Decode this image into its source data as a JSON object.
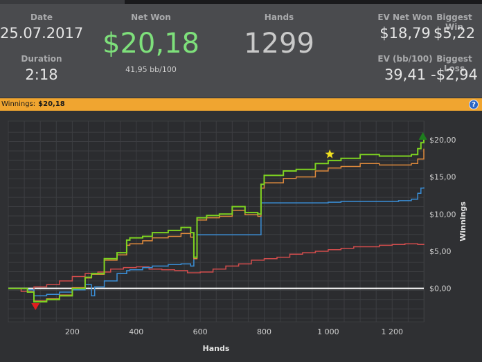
{
  "summary": {
    "date_label": "Date",
    "date_value": "25.07.2017",
    "duration_label": "Duration",
    "duration_value": "2:18",
    "net_won_label": "Net Won",
    "net_won_value": "$20,18",
    "net_won_bb": "41,95 bb/100",
    "hands_label": "Hands",
    "hands_value": "1299",
    "ev_net_won_label": "EV Net Won",
    "ev_net_won_value": "$18,79",
    "biggest_win_label": "Biggest Win",
    "biggest_win_value": "$5,22",
    "ev_bb_label": "EV (bb/100)",
    "ev_bb_value": "39,41",
    "biggest_loss_label": "Biggest Loss",
    "biggest_loss_value": "-$2,94"
  },
  "winnings_bar": {
    "label": "Winnings:",
    "value": "$20,18",
    "help_icon": "?"
  },
  "colors": {
    "net_won_green": "#7ee07b",
    "winbar_orange": "#f0a530",
    "series_green": "#7ed321",
    "series_orange": "#e08a3c",
    "series_blue": "#3a8fd8",
    "series_red": "#d24c4c"
  },
  "chart_data": {
    "type": "line",
    "title": "",
    "xlabel": "Hands",
    "ylabel": "Winnings",
    "xlim": [
      0,
      1299
    ],
    "ylim": [
      -4.5,
      22.5
    ],
    "x_ticks": [
      200,
      400,
      600,
      800,
      1000,
      1200
    ],
    "x_tick_labels": [
      "200",
      "400",
      "600",
      "800",
      "1 000",
      "1 200"
    ],
    "y_ticks": [
      0,
      5,
      10,
      15,
      20
    ],
    "y_tick_labels": [
      "$0,00",
      "$5,00",
      "$10,00",
      "$15,00",
      "$20,00"
    ],
    "grid": true,
    "y_axis_side": "right",
    "series": [
      {
        "color": "#7ed321",
        "x": [
          0,
          60,
          80,
          120,
          160,
          200,
          240,
          260,
          300,
          340,
          370,
          380,
          420,
          450,
          500,
          540,
          570,
          580,
          590,
          620,
          660,
          700,
          740,
          780,
          790,
          800,
          860,
          900,
          960,
          1000,
          1040,
          1100,
          1160,
          1220,
          1260,
          1280,
          1290,
          1299
        ],
        "y": [
          0.0,
          -0.5,
          -1.8,
          -1.5,
          -1.0,
          0.0,
          1.5,
          2.0,
          4.0,
          4.8,
          6.5,
          6.8,
          7.0,
          7.5,
          7.8,
          8.2,
          7.5,
          4.2,
          9.5,
          9.8,
          10.0,
          11.0,
          10.2,
          10.0,
          14.0,
          15.2,
          15.8,
          16.0,
          16.8,
          17.2,
          17.5,
          18.0,
          17.8,
          17.8,
          18.0,
          18.8,
          19.6,
          20.18
        ]
      },
      {
        "color": "#e08a3c",
        "x": [
          0,
          60,
          80,
          120,
          160,
          200,
          240,
          260,
          300,
          340,
          370,
          380,
          420,
          450,
          500,
          540,
          570,
          580,
          590,
          620,
          660,
          700,
          740,
          780,
          790,
          800,
          860,
          900,
          960,
          1000,
          1040,
          1100,
          1160,
          1220,
          1260,
          1280,
          1299
        ],
        "y": [
          0.0,
          -0.5,
          -1.7,
          -1.4,
          -0.9,
          0.1,
          1.4,
          1.9,
          3.8,
          4.5,
          5.8,
          6.0,
          6.4,
          6.8,
          7.0,
          7.4,
          6.9,
          4.0,
          9.2,
          9.5,
          9.7,
          10.5,
          9.9,
          9.7,
          13.5,
          14.2,
          14.8,
          15.0,
          15.8,
          16.2,
          16.4,
          16.8,
          16.6,
          16.6,
          16.8,
          17.4,
          18.79
        ]
      },
      {
        "color": "#3a8fd8",
        "x": [
          0,
          60,
          80,
          120,
          160,
          200,
          240,
          260,
          270,
          300,
          340,
          370,
          380,
          420,
          450,
          500,
          540,
          570,
          580,
          590,
          620,
          660,
          700,
          740,
          780,
          790,
          860,
          900,
          960,
          1000,
          1040,
          1100,
          1160,
          1220,
          1260,
          1280,
          1290,
          1299
        ],
        "y": [
          0.0,
          -0.2,
          -1.0,
          -0.8,
          -0.5,
          -0.2,
          0.5,
          -1.0,
          0.2,
          1.0,
          2.0,
          2.4,
          2.5,
          2.8,
          3.0,
          3.2,
          3.3,
          3.0,
          4.2,
          7.2,
          7.2,
          7.2,
          7.2,
          7.2,
          7.2,
          11.5,
          11.5,
          11.5,
          11.5,
          11.6,
          11.7,
          11.7,
          11.7,
          11.8,
          12.0,
          12.8,
          13.5,
          13.6
        ]
      },
      {
        "color": "#d24c4c",
        "x": [
          0,
          40,
          80,
          120,
          160,
          200,
          240,
          280,
          320,
          360,
          400,
          440,
          480,
          520,
          560,
          600,
          640,
          680,
          720,
          760,
          800,
          840,
          880,
          920,
          960,
          1000,
          1040,
          1080,
          1120,
          1160,
          1200,
          1240,
          1280,
          1299
        ],
        "y": [
          0.0,
          -0.4,
          0.2,
          0.5,
          1.0,
          1.6,
          2.0,
          2.2,
          2.6,
          2.8,
          2.9,
          2.6,
          2.5,
          2.4,
          2.1,
          2.2,
          2.6,
          3.0,
          3.3,
          3.8,
          4.0,
          4.2,
          4.6,
          4.8,
          5.0,
          5.2,
          5.4,
          5.6,
          5.6,
          5.8,
          5.9,
          6.0,
          5.9,
          6.0
        ]
      }
    ],
    "markers": [
      {
        "type": "low",
        "shape": "triangle-down",
        "color": "#e02020",
        "x": 85,
        "y": -1.8
      },
      {
        "type": "star",
        "shape": "star",
        "color": "#f0e020",
        "x": 1005,
        "y": 17.2
      },
      {
        "type": "high",
        "shape": "triangle-up",
        "color": "#1e7d1e",
        "x": 1296,
        "y": 20.18
      }
    ],
    "zero_line": true
  }
}
